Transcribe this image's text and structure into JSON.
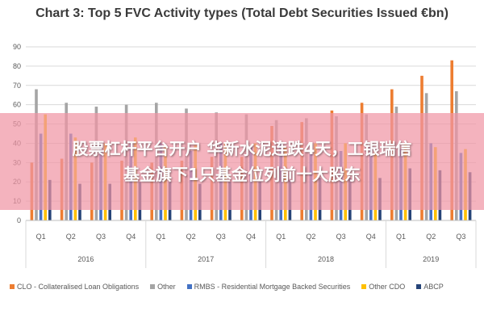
{
  "chart_data": {
    "type": "bar",
    "title": "Chart 3: Top 5 FVC Activity types (Total Debt Securities Issued €bn)",
    "ylim": [
      0,
      90
    ],
    "yticks": [
      0,
      10,
      20,
      30,
      40,
      50,
      60,
      70,
      80,
      90
    ],
    "grid": true,
    "legend_position": "bottom",
    "categories": [
      "Q1",
      "Q2",
      "Q3",
      "Q4",
      "Q1",
      "Q2",
      "Q3",
      "Q4",
      "Q1",
      "Q2",
      "Q3",
      "Q4",
      "Q1",
      "Q2",
      "Q3"
    ],
    "years": [
      {
        "label": "2016",
        "quarters": 4
      },
      {
        "label": "2017",
        "quarters": 4
      },
      {
        "label": "2018",
        "quarters": 4
      },
      {
        "label": "2019",
        "quarters": 3
      }
    ],
    "series": [
      {
        "name": "CLO - Collateralised Loan Obligations",
        "color": "#ed7d31",
        "values": [
          30,
          32,
          30,
          31,
          30,
          31,
          33,
          33,
          49,
          51,
          57,
          61,
          68,
          75,
          83
        ]
      },
      {
        "name": "Other",
        "color": "#a5a5a5",
        "values": [
          68,
          61,
          59,
          60,
          61,
          58,
          56,
          55,
          52,
          53,
          54,
          55,
          59,
          66,
          67
        ]
      },
      {
        "name": "RMBS - Residential Mortgage Backed Securities",
        "color": "#4472c4",
        "values": [
          45,
          45,
          40,
          40,
          40,
          36,
          40,
          38,
          40,
          40,
          36,
          38,
          37,
          40,
          35
        ]
      },
      {
        "name": "Other CDO",
        "color": "#ffc000",
        "values": [
          55,
          43,
          40,
          43,
          38,
          39,
          40,
          40,
          38,
          40,
          40,
          36,
          40,
          38,
          37
        ]
      },
      {
        "name": "ABCP",
        "color": "#264478",
        "values": [
          21,
          19,
          19,
          20,
          20,
          19,
          20,
          20,
          21,
          22,
          22,
          22,
          27,
          26,
          25
        ]
      }
    ]
  },
  "banner": {
    "line1": "股票杠杆平台开户 华新水泥连跌4天，工银瑞信",
    "line2": "基金旗下1只基金位列前十大股东"
  }
}
